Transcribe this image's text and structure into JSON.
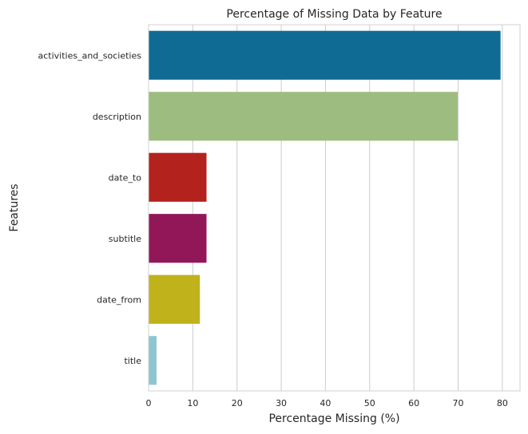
{
  "chart_data": {
    "type": "bar",
    "orientation": "horizontal",
    "title": "Percentage of Missing Data by Feature",
    "xlabel": "Percentage Missing (%)",
    "ylabel": "Features",
    "categories": [
      "activities_and_societies",
      "description",
      "date_to",
      "subtitle",
      "date_from",
      "title"
    ],
    "values": [
      79.6,
      69.9,
      13.1,
      13.1,
      11.6,
      1.8
    ],
    "colors": [
      "#0f6b93",
      "#9dbc7f",
      "#b3221d",
      "#921758",
      "#bfb21b",
      "#8ec5d3"
    ],
    "xlim": [
      0,
      84
    ],
    "xticks": [
      0,
      10,
      20,
      30,
      40,
      50,
      60,
      70,
      80
    ],
    "grid": true,
    "background": "#ffffff",
    "grid_color": "#cccccc",
    "spine_color": "#d0d0d0"
  }
}
